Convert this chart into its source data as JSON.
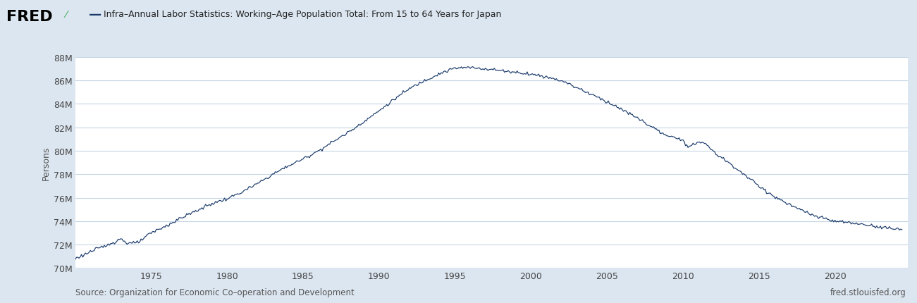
{
  "title": "Infra–Annual Labor Statistics: Working–Age Population Total: From 15 to 64 Years for Japan",
  "ylabel": "Persons",
  "source_left": "Source: Organization for Economic Co–operation and Development",
  "source_right": "fred.stlouisfed.org",
  "line_color": "#1a3a6b",
  "bg_color": "#FFFFFF",
  "outer_bg_color": "#dce6f0",
  "grid_color": "#c5d5e5",
  "ylim_min": 70000000,
  "ylim_max": 88000000,
  "ytick_vals": [
    70000000,
    72000000,
    74000000,
    76000000,
    78000000,
    80000000,
    82000000,
    84000000,
    86000000,
    88000000
  ],
  "ytick_labels": [
    "70M",
    "72M",
    "74M",
    "76M",
    "78M",
    "80M",
    "82M",
    "84M",
    "86M",
    "88M"
  ],
  "xtick_years": [
    1975,
    1980,
    1985,
    1990,
    1995,
    2000,
    2005,
    2010,
    2015,
    2020
  ],
  "xmin": 1970.0,
  "xmax": 2024.8,
  "keypoints_x": [
    1970.0,
    1971.0,
    1972.0,
    1973.0,
    1973.4,
    1974.0,
    1974.5,
    1975.0,
    1976.0,
    1977.0,
    1978.0,
    1979.0,
    1980.0,
    1981.0,
    1982.0,
    1983.0,
    1984.0,
    1985.0,
    1986.0,
    1987.0,
    1988.0,
    1989.0,
    1990.0,
    1991.0,
    1992.0,
    1993.0,
    1994.0,
    1995.0,
    1996.0,
    1997.0,
    1998.0,
    1999.0,
    2000.0,
    2001.0,
    2002.0,
    2003.0,
    2004.0,
    2005.0,
    2006.0,
    2007.0,
    2008.0,
    2009.0,
    2010.0,
    2010.35,
    2011.0,
    2011.5,
    2012.0,
    2013.0,
    2014.0,
    2015.0,
    2016.0,
    2017.0,
    2018.0,
    2019.0,
    2020.0,
    2021.0,
    2022.0,
    2023.0,
    2024.0,
    2024.42
  ],
  "keypoints_y": [
    70.8,
    71.4,
    71.9,
    72.5,
    72.15,
    72.1,
    72.5,
    73.0,
    73.6,
    74.3,
    74.9,
    75.5,
    75.9,
    76.5,
    77.2,
    78.0,
    78.7,
    79.3,
    80.0,
    80.8,
    81.6,
    82.5,
    83.4,
    84.4,
    85.3,
    86.0,
    86.6,
    87.05,
    87.1,
    87.0,
    86.85,
    86.7,
    86.55,
    86.3,
    86.0,
    85.4,
    84.8,
    84.2,
    83.5,
    82.8,
    82.0,
    81.2,
    81.0,
    80.2,
    80.8,
    80.6,
    79.9,
    79.0,
    78.0,
    77.0,
    76.1,
    75.4,
    74.8,
    74.3,
    74.0,
    73.85,
    73.7,
    73.5,
    73.35,
    73.3
  ]
}
